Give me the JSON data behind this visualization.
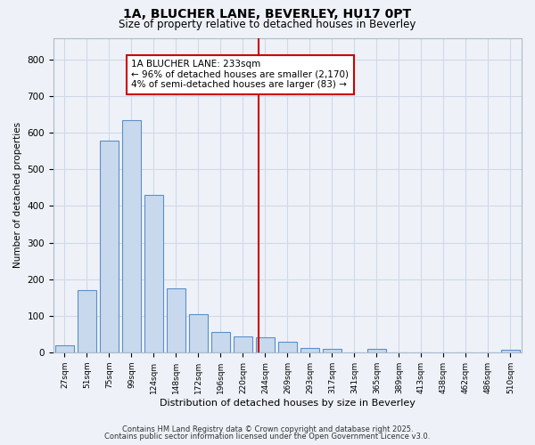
{
  "title": "1A, BLUCHER LANE, BEVERLEY, HU17 0PT",
  "subtitle": "Size of property relative to detached houses in Beverley",
  "xlabel": "Distribution of detached houses by size in Beverley",
  "ylabel": "Number of detached properties",
  "bar_labels": [
    "27sqm",
    "51sqm",
    "75sqm",
    "99sqm",
    "124sqm",
    "148sqm",
    "172sqm",
    "196sqm",
    "220sqm",
    "244sqm",
    "269sqm",
    "293sqm",
    "317sqm",
    "341sqm",
    "365sqm",
    "389sqm",
    "413sqm",
    "438sqm",
    "462sqm",
    "486sqm",
    "510sqm"
  ],
  "bar_values": [
    20,
    170,
    580,
    635,
    430,
    175,
    105,
    55,
    43,
    40,
    30,
    13,
    10,
    0,
    9,
    0,
    0,
    0,
    0,
    0,
    7
  ],
  "bar_color": "#c9d9ed",
  "bar_edgecolor": "#5b8fc9",
  "vline_x": 8.72,
  "vline_color": "#cc0000",
  "annotation_text": "1A BLUCHER LANE: 233sqm\n← 96% of detached houses are smaller (2,170)\n4% of semi-detached houses are larger (83) →",
  "annotation_box_color": "#ffffff",
  "annotation_box_edgecolor": "#cc0000",
  "ylim": [
    0,
    860
  ],
  "yticks": [
    0,
    100,
    200,
    300,
    400,
    500,
    600,
    700,
    800
  ],
  "grid_color": "#d0d8e8",
  "bg_color": "#eef2f8",
  "footnote1": "Contains HM Land Registry data © Crown copyright and database right 2025.",
  "footnote2": "Contains public sector information licensed under the Open Government Licence v3.0."
}
